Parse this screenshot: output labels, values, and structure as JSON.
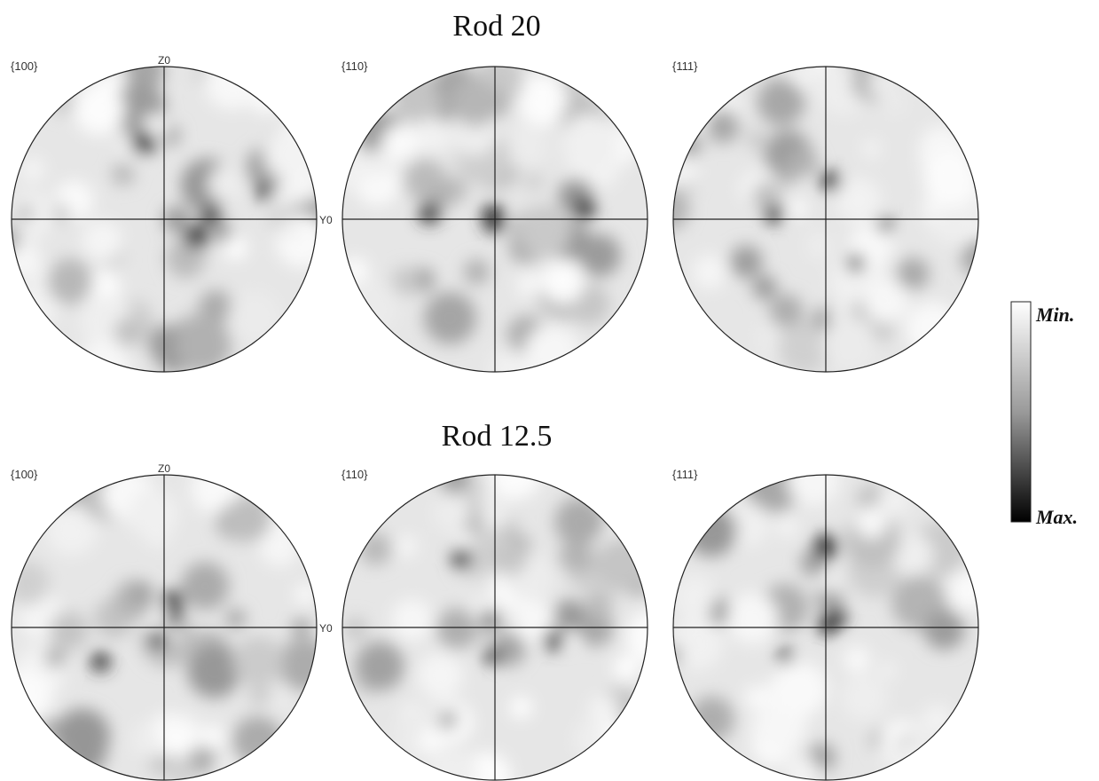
{
  "rows": [
    {
      "title": "Rod 20",
      "figures": [
        {
          "label": "{100}",
          "top_axis": "Z0",
          "right_axis": "Y0"
        },
        {
          "label": "{110}"
        },
        {
          "label": "{111}"
        }
      ]
    },
    {
      "title": "Rod 12.5",
      "figures": [
        {
          "label": "{100}",
          "top_axis": "Z0",
          "right_axis": "Y0"
        },
        {
          "label": "{110}"
        },
        {
          "label": "{111}"
        }
      ]
    }
  ],
  "colorbar": {
    "min": "Min.",
    "max": "Max."
  }
}
